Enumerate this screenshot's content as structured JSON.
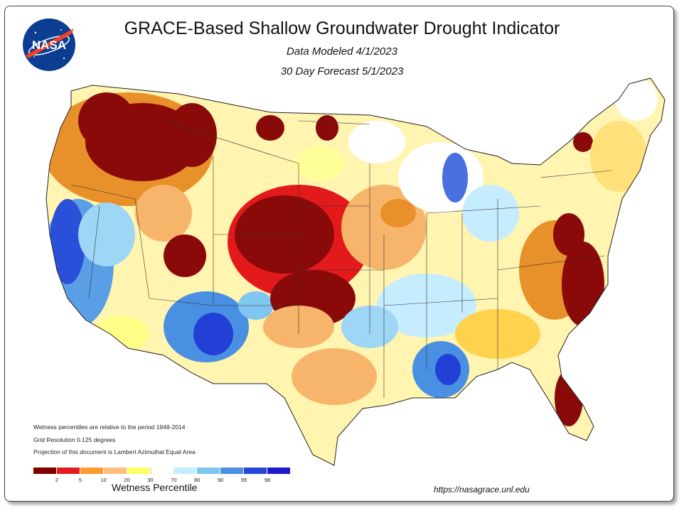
{
  "header": {
    "logo_text": "NASA",
    "title": "GRACE-Based Shallow Groundwater Drought Indicator",
    "subtitle_modeled": "Data Modeled 4/1/2023",
    "subtitle_forecast": "30 Day Forecast 5/1/2023"
  },
  "notes": {
    "period": "Wetness percentiles are relative to the period 1948-2014",
    "resolution": "Grid Resolution 0.125 degrees",
    "projection": "Projection of this document is Lambert Azimuthal Equal Area"
  },
  "legend": {
    "label": "Wetness Percentile",
    "colors": [
      "#800000",
      "#e31a1c",
      "#ff9a2e",
      "#fdbf7a",
      "#ffff66",
      "#ffffff",
      "#c6ecff",
      "#7fc6f0",
      "#4a90e2",
      "#2846d6",
      "#1c1ccc"
    ],
    "ticks": [
      "2",
      "5",
      "10",
      "20",
      "30",
      "70",
      "80",
      "90",
      "95",
      "98"
    ]
  },
  "footer": {
    "url": "https://nasagrace.unl.edu"
  }
}
